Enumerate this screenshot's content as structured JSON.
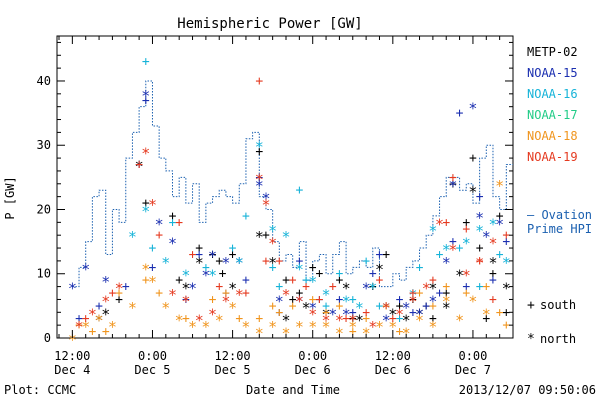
{
  "chart_data": {
    "type": "scatter",
    "title": "Hemispheric Power [GW]",
    "ylabel": "P [GW]",
    "xlabel": "Date and Time",
    "ylim": [
      0,
      47
    ],
    "yticks": [
      0,
      10,
      20,
      30,
      40
    ],
    "xticks": [
      {
        "t": 12,
        "line1": "12:00",
        "line2": "Dec 4"
      },
      {
        "t": 24,
        "line1": "0:00",
        "line2": "Dec 5"
      },
      {
        "t": 36,
        "line1": "12:00",
        "line2": "Dec 5"
      },
      {
        "t": 48,
        "line1": "0:00",
        "line2": "Dec 6"
      },
      {
        "t": 60,
        "line1": "12:00",
        "line2": "Dec 6"
      },
      {
        "t": 72,
        "line1": "0:00",
        "line2": "Dec 7"
      }
    ],
    "xlim": [
      12,
      78
    ],
    "footer_left": "Plot: CCMC",
    "footer_right": "2013/12/07 09:50:06",
    "ovation_label_1": "— Ovation",
    "ovation_label_2": "Prime HPI",
    "marker_legend": {
      "south": "south",
      "north": "north"
    },
    "series": [
      {
        "name": "METP-02",
        "color": "#000000",
        "south": [
          [
            19,
            6
          ],
          [
            23,
            21
          ],
          [
            27,
            19
          ],
          [
            28,
            9
          ],
          [
            31,
            14
          ],
          [
            33,
            13
          ],
          [
            34,
            12
          ],
          [
            34.5,
            10
          ],
          [
            36,
            13
          ],
          [
            40,
            29
          ],
          [
            41,
            16
          ],
          [
            44,
            9
          ],
          [
            45,
            6
          ],
          [
            46,
            7
          ],
          [
            48,
            11
          ],
          [
            49,
            10
          ],
          [
            52,
            9
          ],
          [
            54,
            3
          ],
          [
            57,
            8
          ],
          [
            59,
            13
          ],
          [
            61,
            5
          ],
          [
            63,
            6
          ],
          [
            65,
            5
          ],
          [
            66,
            3
          ],
          [
            68,
            7
          ],
          [
            69,
            24
          ],
          [
            71,
            18
          ],
          [
            72,
            28
          ],
          [
            73,
            14
          ],
          [
            75,
            10
          ],
          [
            76,
            19
          ],
          [
            77,
            4
          ],
          [
            74,
            3
          ]
        ],
        "north": [
          [
            16,
            3
          ],
          [
            17,
            4
          ],
          [
            22,
            27
          ],
          [
            29,
            8
          ],
          [
            31,
            12
          ],
          [
            36,
            8
          ],
          [
            40,
            16
          ],
          [
            42,
            12
          ],
          [
            44,
            3
          ],
          [
            47,
            5
          ],
          [
            50,
            4
          ],
          [
            53,
            8
          ],
          [
            55,
            3
          ],
          [
            58,
            11
          ],
          [
            60,
            4
          ],
          [
            62,
            3
          ],
          [
            64,
            4
          ],
          [
            66,
            8
          ],
          [
            68,
            5
          ],
          [
            70,
            10
          ],
          [
            72,
            23
          ],
          [
            75,
            12
          ],
          [
            77,
            8
          ]
        ]
      },
      {
        "name": "NOAA-15",
        "color": "#1b2fb0",
        "south": [
          [
            13,
            3
          ],
          [
            16,
            5
          ],
          [
            20,
            8
          ],
          [
            22,
            27
          ],
          [
            23,
            37
          ],
          [
            24,
            11
          ],
          [
            29,
            6
          ],
          [
            31,
            13
          ],
          [
            35,
            7
          ],
          [
            38,
            9
          ],
          [
            40,
            25
          ],
          [
            43,
            4
          ],
          [
            46,
            12
          ],
          [
            47,
            9
          ],
          [
            49,
            6
          ],
          [
            52,
            6
          ],
          [
            54,
            4
          ],
          [
            57,
            10
          ],
          [
            58,
            13
          ],
          [
            61,
            6
          ],
          [
            63,
            4
          ],
          [
            65,
            5
          ],
          [
            67,
            7
          ],
          [
            69,
            15
          ],
          [
            70,
            35
          ],
          [
            71,
            8
          ],
          [
            73,
            22
          ],
          [
            75,
            9
          ],
          [
            77,
            15
          ]
        ],
        "north": [
          [
            12,
            8
          ],
          [
            14,
            11
          ],
          [
            17,
            9
          ],
          [
            23,
            38
          ],
          [
            25,
            18
          ],
          [
            27,
            15
          ],
          [
            30,
            8
          ],
          [
            32,
            10
          ],
          [
            33,
            13
          ],
          [
            35,
            12
          ],
          [
            37,
            12
          ],
          [
            40,
            24
          ],
          [
            41,
            22
          ],
          [
            43,
            6
          ],
          [
            46,
            6
          ],
          [
            48,
            5
          ],
          [
            51,
            4
          ],
          [
            53,
            4
          ],
          [
            56,
            8
          ],
          [
            59,
            3
          ],
          [
            62,
            5
          ],
          [
            64,
            4
          ],
          [
            66,
            6
          ],
          [
            68,
            12
          ],
          [
            69,
            24
          ],
          [
            72,
            36
          ],
          [
            73,
            19
          ],
          [
            74,
            16
          ],
          [
            76,
            18
          ]
        ]
      },
      {
        "name": "NOAA-16",
        "color": "#16b3d8",
        "south": [
          [
            23,
            43
          ],
          [
            24,
            14
          ],
          [
            27,
            18
          ],
          [
            32,
            11
          ],
          [
            36,
            14
          ],
          [
            38,
            19
          ],
          [
            42,
            11
          ],
          [
            43,
            8
          ],
          [
            46,
            23
          ],
          [
            47,
            9
          ],
          [
            50,
            5
          ],
          [
            52,
            10
          ],
          [
            54,
            6
          ],
          [
            56,
            12
          ],
          [
            58,
            5
          ],
          [
            61,
            3
          ],
          [
            64,
            11
          ],
          [
            67,
            13
          ],
          [
            70,
            14
          ],
          [
            73,
            8
          ],
          [
            76,
            13
          ]
        ],
        "north": [
          [
            21,
            16
          ],
          [
            23,
            20
          ],
          [
            26,
            12
          ],
          [
            29,
            10
          ],
          [
            33,
            10
          ],
          [
            37,
            12
          ],
          [
            40,
            30
          ],
          [
            42,
            17
          ],
          [
            44,
            16
          ],
          [
            46,
            11
          ],
          [
            48,
            9
          ],
          [
            50,
            7
          ],
          [
            53,
            6
          ],
          [
            55,
            5
          ],
          [
            57,
            8
          ],
          [
            59,
            5
          ],
          [
            63,
            7
          ],
          [
            66,
            17
          ],
          [
            68,
            14
          ],
          [
            71,
            15
          ],
          [
            73,
            17
          ],
          [
            75,
            18
          ],
          [
            77,
            12
          ]
        ]
      },
      {
        "name": "NOAA-17",
        "color": "#22cc88",
        "south": [],
        "north": []
      },
      {
        "name": "NOAA-18",
        "color": "#f0951e",
        "south": [
          [
            13,
            2
          ],
          [
            15,
            1
          ],
          [
            17,
            1
          ],
          [
            19,
            7
          ],
          [
            23,
            9
          ],
          [
            25,
            7
          ],
          [
            29,
            3
          ],
          [
            33,
            6
          ],
          [
            35,
            7
          ],
          [
            37,
            3
          ],
          [
            40,
            3
          ],
          [
            42,
            5
          ],
          [
            43,
            4
          ],
          [
            45,
            5
          ],
          [
            48,
            6
          ],
          [
            50,
            4
          ],
          [
            52,
            5
          ],
          [
            54,
            1
          ],
          [
            56,
            3
          ],
          [
            59,
            5
          ],
          [
            61,
            1
          ],
          [
            64,
            7
          ],
          [
            66,
            5
          ],
          [
            68,
            8
          ],
          [
            71,
            7
          ],
          [
            74,
            8
          ],
          [
            76,
            4
          ],
          [
            77,
            2
          ]
        ],
        "north": [
          [
            12,
            0
          ],
          [
            14,
            2
          ],
          [
            16,
            3
          ],
          [
            18,
            2
          ],
          [
            21,
            5
          ],
          [
            23,
            11
          ],
          [
            24,
            9
          ],
          [
            26,
            5
          ],
          [
            28,
            3
          ],
          [
            30,
            2
          ],
          [
            32,
            2
          ],
          [
            34,
            3
          ],
          [
            36,
            5
          ],
          [
            38,
            2
          ],
          [
            40,
            1
          ],
          [
            42,
            2
          ],
          [
            44,
            1
          ],
          [
            46,
            2
          ],
          [
            48,
            2
          ],
          [
            50,
            2
          ],
          [
            52,
            1
          ],
          [
            54,
            2
          ],
          [
            56,
            1
          ],
          [
            58,
            2
          ],
          [
            60,
            2
          ],
          [
            62,
            1
          ],
          [
            64,
            3
          ],
          [
            66,
            2
          ],
          [
            68,
            6
          ],
          [
            70,
            3
          ],
          [
            72,
            6
          ],
          [
            74,
            4
          ],
          [
            76,
            24
          ]
        ]
      },
      {
        "name": "NOAA-19",
        "color": "#e53a20",
        "south": [
          [
            14,
            3
          ],
          [
            18,
            7
          ],
          [
            22,
            27
          ],
          [
            25,
            16
          ],
          [
            28,
            18
          ],
          [
            30,
            13
          ],
          [
            34,
            8
          ],
          [
            38,
            7
          ],
          [
            40,
            40
          ],
          [
            41,
            12
          ],
          [
            43,
            12
          ],
          [
            45,
            9
          ],
          [
            47,
            8
          ],
          [
            49,
            6
          ],
          [
            51,
            8
          ],
          [
            53,
            3
          ],
          [
            56,
            4
          ],
          [
            58,
            9
          ],
          [
            60,
            3
          ],
          [
            63,
            7
          ],
          [
            66,
            9
          ],
          [
            68,
            18
          ],
          [
            69,
            25
          ],
          [
            71,
            17
          ],
          [
            73,
            12
          ],
          [
            75,
            6
          ],
          [
            77,
            16
          ]
        ],
        "north": [
          [
            13,
            2
          ],
          [
            15,
            4
          ],
          [
            17,
            6
          ],
          [
            19,
            8
          ],
          [
            23,
            29
          ],
          [
            24,
            21
          ],
          [
            27,
            7
          ],
          [
            29,
            6
          ],
          [
            31,
            3
          ],
          [
            33,
            4
          ],
          [
            35,
            6
          ],
          [
            37,
            7
          ],
          [
            40,
            25
          ],
          [
            41,
            21
          ],
          [
            42,
            15
          ],
          [
            44,
            7
          ],
          [
            46,
            6
          ],
          [
            48,
            4
          ],
          [
            50,
            3
          ],
          [
            52,
            3
          ],
          [
            54,
            3
          ],
          [
            57,
            2
          ],
          [
            59,
            5
          ],
          [
            61,
            4
          ],
          [
            63,
            6
          ],
          [
            65,
            8
          ],
          [
            67,
            18
          ],
          [
            69,
            14
          ],
          [
            71,
            10
          ],
          [
            73,
            12
          ],
          [
            75,
            15
          ]
        ]
      }
    ],
    "ovation_steps": [
      [
        12,
        8
      ],
      [
        13,
        11
      ],
      [
        14,
        15
      ],
      [
        15,
        22
      ],
      [
        16,
        23
      ],
      [
        17,
        13
      ],
      [
        18,
        20
      ],
      [
        19,
        18
      ],
      [
        20,
        28
      ],
      [
        21,
        32
      ],
      [
        22,
        36
      ],
      [
        23,
        40
      ],
      [
        24,
        33
      ],
      [
        25,
        28
      ],
      [
        26,
        26
      ],
      [
        27,
        22
      ],
      [
        28,
        25
      ],
      [
        29,
        21
      ],
      [
        30,
        24
      ],
      [
        31,
        18
      ],
      [
        32,
        21
      ],
      [
        33,
        22
      ],
      [
        34,
        23
      ],
      [
        35,
        22
      ],
      [
        36,
        21
      ],
      [
        37,
        24
      ],
      [
        38,
        31
      ],
      [
        39,
        32
      ],
      [
        40,
        22
      ],
      [
        41,
        20
      ],
      [
        42,
        15
      ],
      [
        43,
        12
      ],
      [
        44,
        13
      ],
      [
        45,
        11
      ],
      [
        46,
        15
      ],
      [
        47,
        9
      ],
      [
        48,
        12
      ],
      [
        49,
        13
      ],
      [
        50,
        10
      ],
      [
        51,
        13
      ],
      [
        52,
        15
      ],
      [
        53,
        10
      ],
      [
        54,
        11
      ],
      [
        55,
        12
      ],
      [
        56,
        11
      ],
      [
        57,
        14
      ],
      [
        58,
        8
      ],
      [
        59,
        8
      ],
      [
        60,
        10
      ],
      [
        61,
        9
      ],
      [
        62,
        11
      ],
      [
        63,
        12
      ],
      [
        64,
        14
      ],
      [
        65,
        16
      ],
      [
        66,
        19
      ],
      [
        67,
        22
      ],
      [
        68,
        25
      ],
      [
        69,
        25
      ],
      [
        70,
        23
      ],
      [
        71,
        24
      ],
      [
        72,
        21
      ],
      [
        73,
        28
      ],
      [
        74,
        30
      ],
      [
        75,
        22
      ],
      [
        76,
        20
      ],
      [
        77,
        27
      ],
      [
        78,
        27
      ]
    ]
  }
}
